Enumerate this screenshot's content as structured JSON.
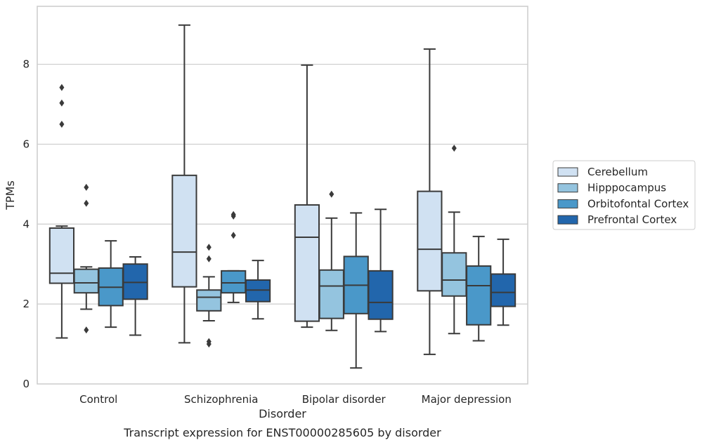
{
  "chart_data": {
    "type": "box",
    "caption": "Transcript expression for ENST00000285605 by disorder",
    "xlabel": "Disorder",
    "ylabel": "TPMs",
    "ylim": [
      0,
      9.45
    ],
    "yticks": [
      0,
      2,
      4,
      6,
      8
    ],
    "grid": "horizontal",
    "legend_position": "right",
    "categories": [
      "Control",
      "Schizophrenia",
      "Bipolar disorder",
      "Major depression"
    ],
    "series": [
      {
        "name": "Cerebellum",
        "color": "#d0e1f2",
        "boxes": [
          {
            "whislo": 1.15,
            "q1": 2.52,
            "med": 2.77,
            "q3": 3.9,
            "whishi": 3.95,
            "fliers": [
              6.5,
              7.03,
              7.42
            ]
          },
          {
            "whislo": 1.03,
            "q1": 2.43,
            "med": 3.3,
            "q3": 5.22,
            "whishi": 8.98,
            "fliers": []
          },
          {
            "whislo": 1.42,
            "q1": 1.57,
            "med": 3.67,
            "q3": 4.48,
            "whishi": 7.98,
            "fliers": []
          },
          {
            "whislo": 0.74,
            "q1": 2.33,
            "med": 3.37,
            "q3": 4.82,
            "whishi": 8.38,
            "fliers": []
          }
        ]
      },
      {
        "name": "Hipppocampus",
        "color": "#94c4df",
        "boxes": [
          {
            "whislo": 1.87,
            "q1": 2.28,
            "med": 2.53,
            "q3": 2.87,
            "whishi": 2.93,
            "fliers": [
              1.35,
              4.52,
              4.92
            ]
          },
          {
            "whislo": 1.58,
            "q1": 1.83,
            "med": 2.17,
            "q3": 2.35,
            "whishi": 2.68,
            "fliers": [
              1.0,
              1.06,
              3.13,
              3.42
            ]
          },
          {
            "whislo": 1.34,
            "q1": 1.64,
            "med": 2.45,
            "q3": 2.85,
            "whishi": 4.15,
            "fliers": [
              4.75
            ]
          },
          {
            "whislo": 1.26,
            "q1": 2.2,
            "med": 2.6,
            "q3": 3.28,
            "whishi": 4.3,
            "fliers": [
              5.9
            ]
          }
        ]
      },
      {
        "name": "Orbitofontal Cortex",
        "color": "#4a98c9",
        "boxes": [
          {
            "whislo": 1.42,
            "q1": 1.96,
            "med": 2.42,
            "q3": 2.9,
            "whishi": 3.58,
            "fliers": []
          },
          {
            "whislo": 2.04,
            "q1": 2.28,
            "med": 2.53,
            "q3": 2.83,
            "whishi": 2.83,
            "fliers": [
              3.72,
              4.2,
              4.24
            ]
          },
          {
            "whislo": 0.4,
            "q1": 1.76,
            "med": 2.47,
            "q3": 3.19,
            "whishi": 4.28,
            "fliers": []
          },
          {
            "whislo": 1.08,
            "q1": 1.48,
            "med": 2.46,
            "q3": 2.95,
            "whishi": 3.69,
            "fliers": []
          }
        ]
      },
      {
        "name": "Prefrontal Cortex",
        "color": "#2266ac",
        "boxes": [
          {
            "whislo": 1.22,
            "q1": 2.12,
            "med": 2.54,
            "q3": 3.0,
            "whishi": 3.18,
            "fliers": []
          },
          {
            "whislo": 1.63,
            "q1": 2.06,
            "med": 2.35,
            "q3": 2.6,
            "whishi": 3.09,
            "fliers": []
          },
          {
            "whislo": 1.31,
            "q1": 1.62,
            "med": 2.04,
            "q3": 2.83,
            "whishi": 4.37,
            "fliers": []
          },
          {
            "whislo": 1.47,
            "q1": 1.94,
            "med": 2.29,
            "q3": 2.75,
            "whishi": 3.62,
            "fliers": []
          }
        ]
      }
    ]
  }
}
